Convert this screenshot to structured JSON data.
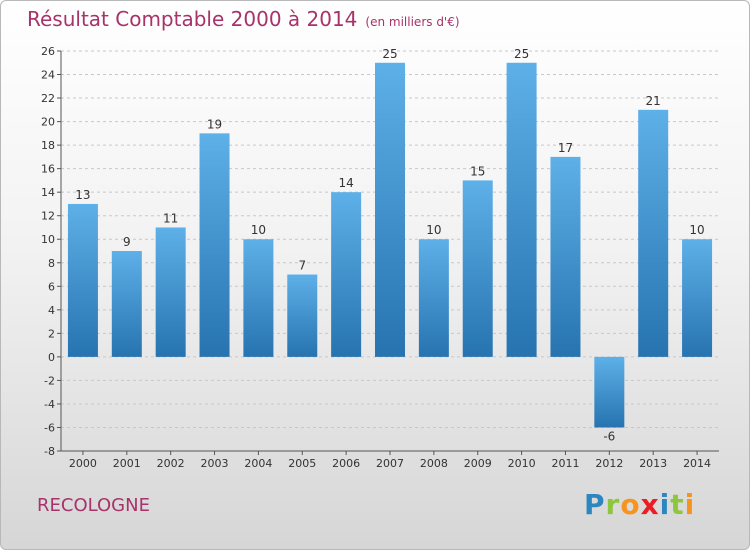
{
  "header": {
    "title": "Résultat Comptable 2000 à 2014",
    "subtitle": "(en milliers d'€)"
  },
  "footer": {
    "commune": "RECOLOGNE",
    "logo": "Proxiti"
  },
  "logo_letters": [
    {
      "char": "P",
      "color": "#2e86c1"
    },
    {
      "char": "r",
      "color": "#8dc63f"
    },
    {
      "char": "o",
      "color": "#f7941d"
    },
    {
      "char": "x",
      "color": "#ed1c24"
    },
    {
      "char": "i",
      "color": "#2e86c1"
    },
    {
      "char": "t",
      "color": "#8dc63f"
    },
    {
      "char": "i",
      "color": "#f7941d"
    }
  ],
  "colors": {
    "bar_light": "#5eb0e8",
    "bar_dark": "#2673b0",
    "grid": "#c8c8c8",
    "title": "#a8326a"
  },
  "chart_data": {
    "type": "bar",
    "title": "Résultat Comptable 2000 à 2014",
    "subtitle": "(en milliers d'€)",
    "xlabel": "",
    "ylabel": "",
    "categories": [
      "2000",
      "2001",
      "2002",
      "2003",
      "2004",
      "2005",
      "2006",
      "2007",
      "2008",
      "2009",
      "2010",
      "2011",
      "2012",
      "2013",
      "2014"
    ],
    "values": [
      13,
      9,
      11,
      19,
      10,
      7,
      14,
      25,
      10,
      15,
      25,
      17,
      -6,
      21,
      10
    ],
    "ylim": [
      -8,
      26
    ],
    "yticks": [
      -8,
      -6,
      -4,
      -2,
      0,
      2,
      4,
      6,
      8,
      10,
      12,
      14,
      16,
      18,
      20,
      22,
      24,
      26
    ],
    "grid": "horizontal-dashed"
  }
}
